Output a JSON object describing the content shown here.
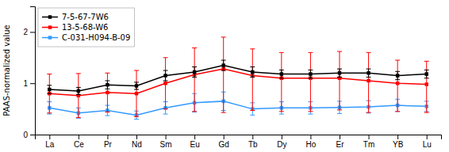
{
  "chart_data": {
    "type": "line",
    "ylabel": "PAAS-normalized value",
    "categories": [
      "La",
      "Ce",
      "Pr",
      "Nd",
      "Sm",
      "Eu",
      "Gd",
      "Tb",
      "Dy",
      "Ho",
      "Er",
      "Tm",
      "YB",
      "Lu"
    ],
    "series": [
      {
        "name": "7-5-67-7W6",
        "color": "#000000",
        "marker": "square",
        "values": [
          0.88,
          0.85,
          0.97,
          0.95,
          1.15,
          1.22,
          1.35,
          1.22,
          1.18,
          1.18,
          1.2,
          1.2,
          1.15,
          1.18
        ],
        "yerr_low": [
          0.08,
          0.07,
          0.08,
          0.07,
          0.1,
          0.1,
          0.1,
          0.1,
          0.08,
          0.08,
          0.08,
          0.08,
          0.08,
          0.08
        ],
        "yerr_high": [
          0.08,
          0.07,
          0.08,
          0.07,
          0.1,
          0.1,
          0.1,
          0.1,
          0.08,
          0.08,
          0.08,
          0.08,
          0.08,
          0.08
        ]
      },
      {
        "name": "13-5-68-W6",
        "color": "#ff0000",
        "marker": "square",
        "values": [
          0.8,
          0.76,
          0.82,
          0.8,
          1.0,
          1.17,
          1.28,
          1.15,
          1.1,
          1.1,
          1.1,
          1.05,
          1.0,
          0.98
        ],
        "yerr_low": [
          0.38,
          0.43,
          0.38,
          0.45,
          0.5,
          0.72,
          0.85,
          0.68,
          0.65,
          0.65,
          0.62,
          0.62,
          0.55,
          0.55
        ],
        "yerr_high": [
          0.38,
          0.43,
          0.38,
          0.45,
          0.5,
          0.52,
          0.62,
          0.52,
          0.5,
          0.5,
          0.52,
          0.55,
          0.45,
          0.45
        ]
      },
      {
        "name": "C-031-H094-B-09",
        "color": "#3399ff",
        "marker": "square",
        "values": [
          0.52,
          0.42,
          0.47,
          0.38,
          0.52,
          0.62,
          0.65,
          0.5,
          0.52,
          0.52,
          0.53,
          0.54,
          0.57,
          0.55
        ],
        "yerr_low": [
          0.12,
          0.1,
          0.1,
          0.08,
          0.12,
          0.18,
          0.18,
          0.12,
          0.12,
          0.12,
          0.12,
          0.12,
          0.12,
          0.1
        ],
        "yerr_high": [
          0.12,
          0.1,
          0.1,
          0.08,
          0.12,
          0.18,
          0.18,
          0.12,
          0.12,
          0.12,
          0.12,
          0.12,
          0.12,
          0.1
        ]
      }
    ],
    "ylim": [
      0,
      2.5
    ],
    "yticks": [
      0,
      1,
      2
    ],
    "grid": false,
    "legend": "upper left"
  }
}
